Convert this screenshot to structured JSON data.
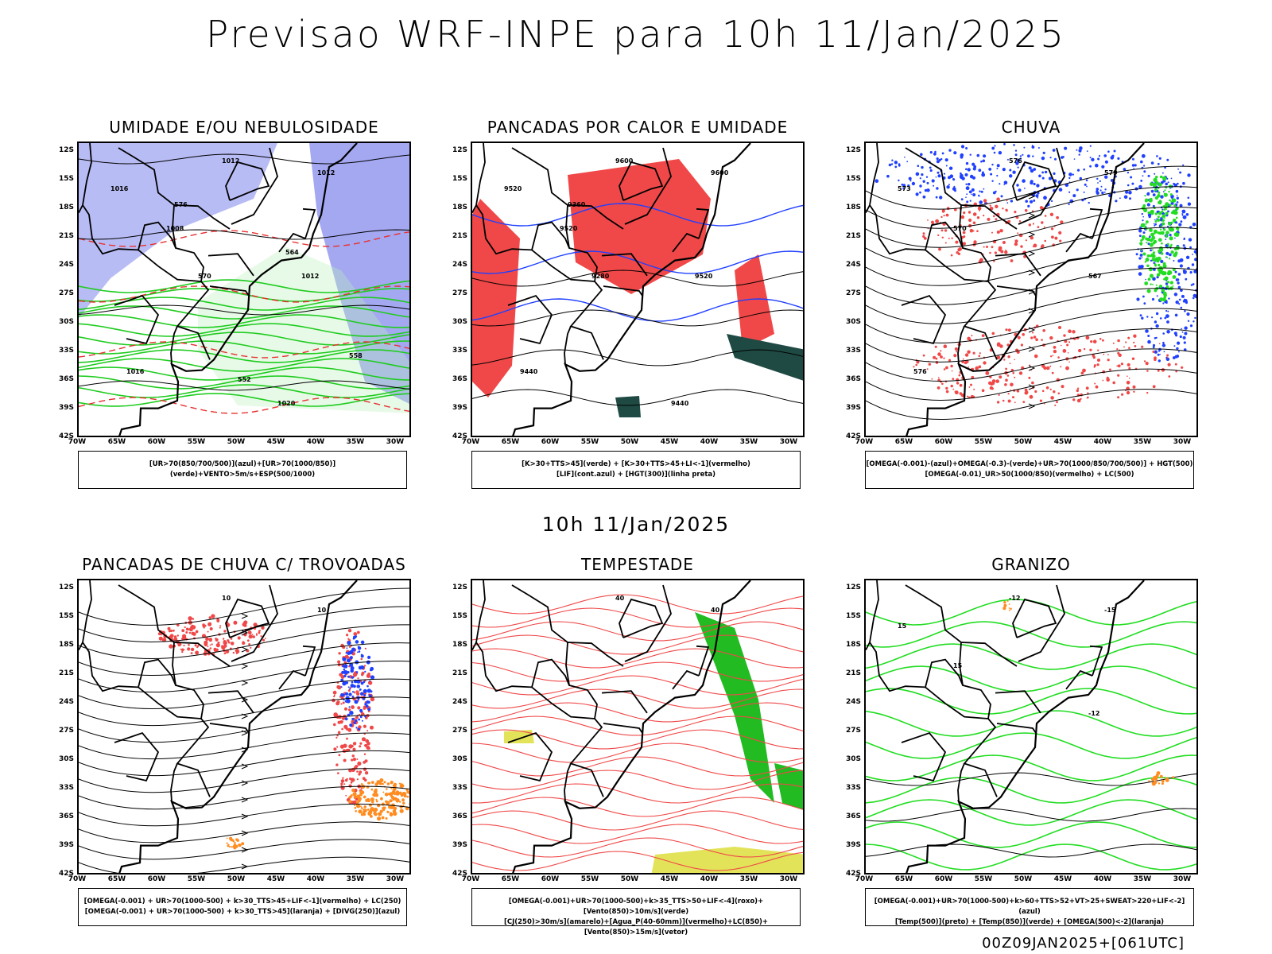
{
  "header": {
    "title": "Previsao WRF-INPE  para 10h 11/Jan/2025",
    "mid_date": "10h 11/Jan/2025",
    "footer": "00Z09JAN2025+[061UTC]"
  },
  "axes": {
    "lat_labels": [
      "12S",
      "15S",
      "18S",
      "21S",
      "24S",
      "27S",
      "30S",
      "33S",
      "36S",
      "39S",
      "42S"
    ],
    "lon_labels": [
      "70W",
      "65W",
      "60W",
      "55W",
      "50W",
      "45W",
      "40W",
      "35W",
      "30W"
    ]
  },
  "panels": [
    {
      "id": "umidade",
      "title": "UMIDADE E/OU NEBULOSIDADE",
      "legend": [
        "[UR>70(850/700/500)](azul)+[UR>70(1000/850)](verde)+VENTO>5m/s+ESP(500/1000)"
      ],
      "contour_labels": [
        "1012",
        "1012",
        "1016",
        "1008",
        "1012",
        "1016",
        "1020",
        "576",
        "570",
        "564",
        "558",
        "552"
      ]
    },
    {
      "id": "pancadas-calor",
      "title": "PANCADAS POR CALOR E UMIDADE",
      "legend": [
        "[K>30+TTS>45](verde) + [K>30+TTS>45+LI<-1](vermelho)",
        "[LIF](cont.azul) + [HGT(300)](linha preta)"
      ],
      "contour_labels": [
        "9600",
        "9600",
        "9520",
        "9520",
        "9520",
        "9440",
        "9440",
        "9360",
        "9280"
      ]
    },
    {
      "id": "chuva",
      "title": "CHUVA",
      "legend": [
        "[OMEGA(-0.001)-(azul)+OMEGA(-0.3)-(verde)+UR>70(1000/850/700/500)] + HGT(500)",
        "[OMEGA(-0.01)_UR>50(1000/850)(vermelho) + LC(500)"
      ],
      "contour_labels": [
        "576",
        "579",
        "573",
        "570",
        "567",
        "576"
      ]
    },
    {
      "id": "trovoadas",
      "title": "PANCADAS DE CHUVA C/ TROVOADAS",
      "legend": [
        "[OMEGA(-0.001) + UR>70(1000-500) + k>30_TTS>45+LIF<-1](vermelho) + LC(250)",
        "[OMEGA(-0.001) + UR>70(1000-500) + k>30_TTS>45](laranja) + [DIVG(250)](azul)"
      ],
      "contour_labels": [
        "10",
        "10"
      ]
    },
    {
      "id": "tempestade",
      "title": "TEMPESTADE",
      "legend": [
        "[OMEGA(-0.001)+UR>70(1000-500)+k>35_TTS>50+LIF<-4](roxo)+[Vento(850)>10m/s](verde)",
        "[CJ(250)>30m/s](amarelo)+[Agua_P(40-60mm)](vermelho)+LC(850)+[Vento(850)>15m/s](vetor)"
      ],
      "contour_labels": [
        "40",
        "40"
      ]
    },
    {
      "id": "granizo",
      "title": "GRANIZO",
      "legend": [
        "[OMEGA(-0.001)+UR>70(1000-500)+k>60+TTS>52+VT>25+SWEAT>220+LIF<-2](azul)",
        "[Temp(500)](preto) + [Temp(850)](verde) + [OMEGA(500)<-2](laranja)"
      ],
      "contour_labels": [
        "-12",
        "-15",
        "15",
        "15",
        "-12"
      ]
    }
  ]
}
